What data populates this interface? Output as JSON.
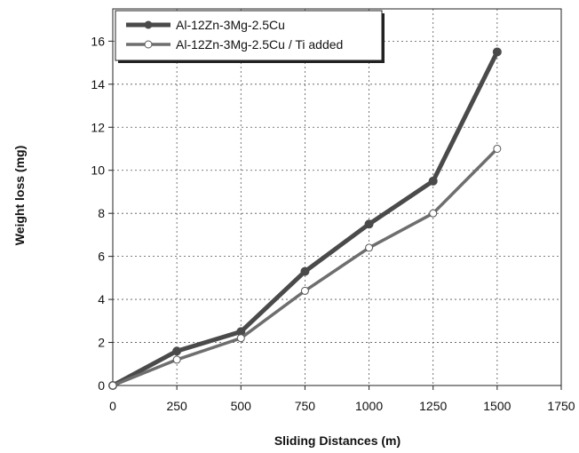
{
  "chart_data": {
    "type": "line",
    "title": "",
    "xlabel": "Sliding Distances (m)",
    "ylabel": "Weight loss (mg)",
    "xlim": [
      0,
      1750
    ],
    "ylim": [
      0,
      17.5
    ],
    "xticks": [
      0,
      250,
      500,
      750,
      1000,
      1250,
      1500,
      1750
    ],
    "yticks": [
      0,
      2,
      4,
      6,
      8,
      10,
      12,
      14,
      16
    ],
    "grid": true,
    "legend_position": "top-left",
    "series": [
      {
        "name": "Al-12Zn-3Mg-2.5Cu",
        "color": "#4a4a4a",
        "marker": "filled-circle",
        "points": [
          [
            0,
            0
          ],
          [
            250,
            1.6
          ],
          [
            500,
            2.5
          ],
          [
            750,
            5.3
          ],
          [
            1000,
            7.5
          ],
          [
            1250,
            9.5
          ],
          [
            1500,
            15.5
          ]
        ]
      },
      {
        "name": "Al-12Zn-3Mg-2.5Cu / Ti added",
        "color": "#6e6e6e",
        "marker": "open-circle",
        "points": [
          [
            0,
            0
          ],
          [
            250,
            1.2
          ],
          [
            500,
            2.2
          ],
          [
            750,
            4.4
          ],
          [
            1000,
            6.4
          ],
          [
            1250,
            8.0
          ],
          [
            1500,
            11.0
          ]
        ]
      }
    ]
  }
}
